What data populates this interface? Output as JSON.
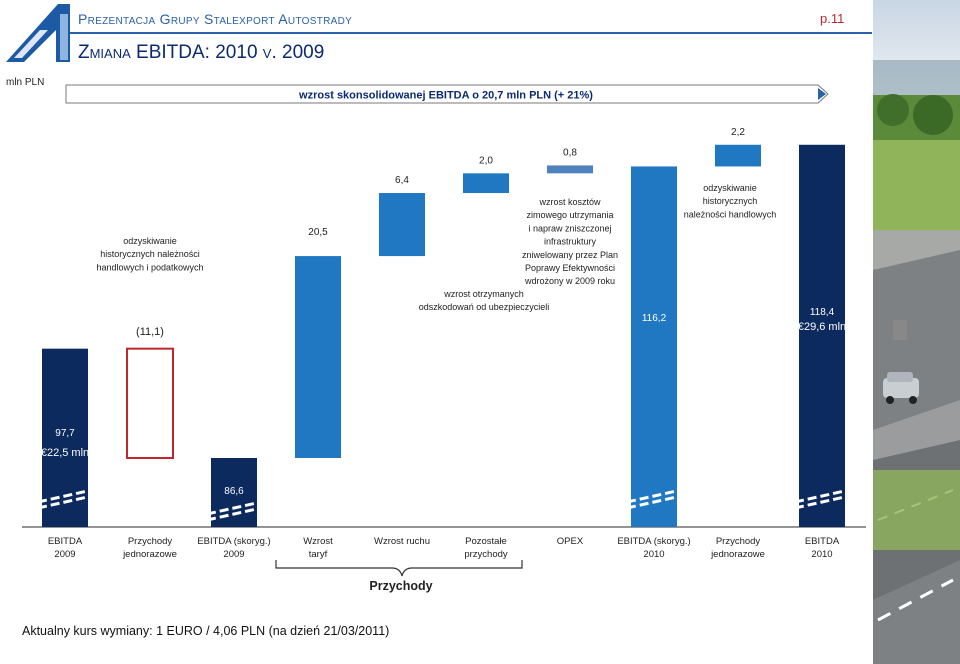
{
  "header": {
    "title": "Prezentacja Grupy Stalexport Autostrady",
    "subtitle": "Zmiana EBITDA: 2010 v. 2009",
    "page": "p.11",
    "unit": "mln PLN"
  },
  "banner": {
    "text": "wzrost skonsolidowanej EBITDA o 20,7 mln PLN (+ 21%)"
  },
  "footnote": "Aktualny kurs wymiany: 1 EURO / 4,06 PLN (na dzień 21/03/2011)",
  "brace_label": "Przychody",
  "colors": {
    "navy": "#0c2a5e",
    "blue": "#1f78c1",
    "grey_blue": "#4f81bd",
    "red": "#c0272d",
    "accent": "#2a62a8"
  },
  "chart_data": {
    "type": "bar",
    "subtype": "waterfall",
    "categories": [
      [
        "EBITDA",
        "2009"
      ],
      [
        "Przychody",
        "jednorazowe"
      ],
      [
        "EBITDA (skoryg.)",
        "2009"
      ],
      [
        "Wzrost",
        "taryf"
      ],
      [
        "Wzrost ruchu",
        ""
      ],
      [
        "Pozostałe",
        "przychody"
      ],
      [
        "OPEX",
        ""
      ],
      [
        "EBITDA (skoryg.)",
        "2010"
      ],
      [
        "Przychody",
        "jednorazowe"
      ],
      [
        "EBITDA",
        "2010"
      ]
    ],
    "bars": [
      {
        "kind": "total",
        "base": 0,
        "value": 97.7,
        "label": "97,7",
        "sublabel": "€22,5 mln",
        "color": "#0c2a5e",
        "broken": true
      },
      {
        "kind": "decrease",
        "base": 86.6,
        "value": 11.1,
        "label": "(11,1)",
        "color": "#c0272d",
        "outline": true
      },
      {
        "kind": "total",
        "base": 0,
        "value": 86.6,
        "label": "86,6",
        "color": "#0c2a5e",
        "broken": true
      },
      {
        "kind": "increase",
        "base": 86.6,
        "value": 20.5,
        "label": "20,5",
        "color": "#1f78c1"
      },
      {
        "kind": "increase",
        "base": 107.1,
        "value": 6.4,
        "label": "6,4",
        "color": "#1f78c1"
      },
      {
        "kind": "increase",
        "base": 113.5,
        "value": 2.0,
        "label": "2,0",
        "color": "#1f78c1"
      },
      {
        "kind": "increase",
        "base": 115.5,
        "value": 0.8,
        "label": "0,8",
        "color": "#4f81bd"
      },
      {
        "kind": "total",
        "base": 0,
        "value": 116.2,
        "label": "116,2",
        "color": "#1f78c1",
        "broken": true
      },
      {
        "kind": "increase",
        "base": 116.2,
        "value": 2.2,
        "label": "2,2",
        "color": "#1f78c1"
      },
      {
        "kind": "total",
        "base": 0,
        "value": 118.4,
        "label": "118,4",
        "sublabel": "€29,6 mln",
        "color": "#0c2a5e",
        "broken": true
      }
    ],
    "annotations": [
      {
        "target": 1,
        "lines": [
          "odzyskiwanie",
          "historycznych należności",
          "handlowych i podatkowych"
        ]
      },
      {
        "target": 5,
        "lines": [
          "wzrost otrzymanych",
          "odszkodowań od ubezpieczycieli"
        ]
      },
      {
        "target": 6,
        "lines": [
          "wzrost kosztów",
          "zimowego utrzymania",
          "i napraw zniszczonej",
          "infrastruktury",
          "zniwelowany przez Plan",
          "Poprawy Efektywności",
          "wdrożony w 2009 roku"
        ]
      },
      {
        "target": 8,
        "lines": [
          "odzyskiwanie",
          "historycznych",
          "należności handlowych"
        ]
      }
    ],
    "xlabel": "",
    "ylabel": "mln PLN"
  }
}
